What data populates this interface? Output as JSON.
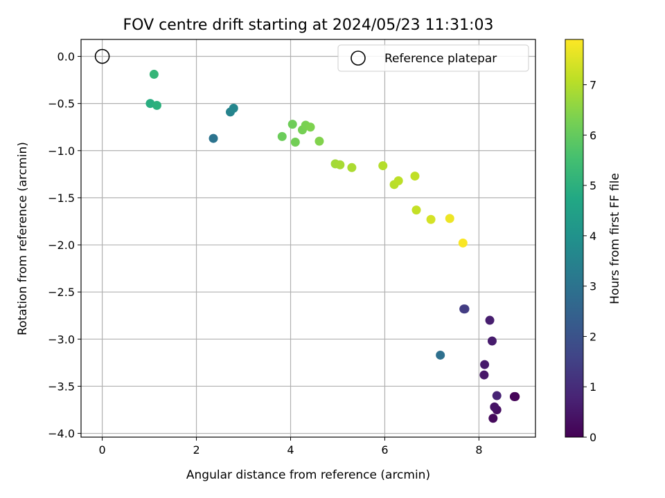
{
  "chart_data": {
    "type": "scatter",
    "title": "FOV centre drift starting at 2024/05/23 11:31:03",
    "xlabel": "Angular distance from reference (arcmin)",
    "ylabel": "Rotation from reference (arcmin)",
    "xlim": [
      -0.45,
      9.2
    ],
    "ylim": [
      -4.04,
      0.18
    ],
    "xticks": [
      "0",
      "2",
      "4",
      "6",
      "8"
    ],
    "xtick_values": [
      0,
      2,
      4,
      6,
      8
    ],
    "yticks": [
      "0.0",
      "−0.5",
      "−1.0",
      "−1.5",
      "−2.0",
      "−2.5",
      "−3.0",
      "−3.5",
      "−4.0"
    ],
    "ytick_values": [
      0,
      -0.5,
      -1,
      -1.5,
      -2,
      -2.5,
      -3,
      -3.5,
      -4
    ],
    "grid": true,
    "legend": {
      "label": "Reference platepar",
      "position": "top-right"
    },
    "reference": {
      "x": 0,
      "y": 0
    },
    "colorbar": {
      "label": "Hours from first FF file",
      "min": 0,
      "max": 7.9,
      "ticks": [
        "0",
        "1",
        "2",
        "3",
        "4",
        "5",
        "6",
        "7"
      ],
      "tick_values": [
        0,
        1,
        2,
        3,
        4,
        5,
        6,
        7
      ],
      "colormap": "viridis"
    },
    "points": [
      {
        "x": 8.77,
        "y": -3.61,
        "h": 0.0
      },
      {
        "x": 8.75,
        "y": -3.61,
        "h": 0.1
      },
      {
        "x": 8.3,
        "y": -3.84,
        "h": 0.2
      },
      {
        "x": 8.38,
        "y": -3.75,
        "h": 0.3
      },
      {
        "x": 8.33,
        "y": -3.72,
        "h": 0.4
      },
      {
        "x": 8.11,
        "y": -3.38,
        "h": 0.5
      },
      {
        "x": 8.12,
        "y": -3.27,
        "h": 0.55
      },
      {
        "x": 8.28,
        "y": -3.02,
        "h": 0.6
      },
      {
        "x": 8.23,
        "y": -2.8,
        "h": 0.65
      },
      {
        "x": 8.38,
        "y": -3.6,
        "h": 0.8
      },
      {
        "x": 7.68,
        "y": -2.68,
        "h": 1.35
      },
      {
        "x": 7.7,
        "y": -2.68,
        "h": 1.4
      },
      {
        "x": 7.18,
        "y": -3.17,
        "h": 2.9
      },
      {
        "x": 2.36,
        "y": -0.87,
        "h": 3.0
      },
      {
        "x": 2.72,
        "y": -0.59,
        "h": 3.5
      },
      {
        "x": 2.79,
        "y": -0.55,
        "h": 3.6
      },
      {
        "x": 1.02,
        "y": -0.5,
        "h": 4.9
      },
      {
        "x": 1.16,
        "y": -0.52,
        "h": 5.0
      },
      {
        "x": 1.1,
        "y": -0.19,
        "h": 5.2
      },
      {
        "x": 3.82,
        "y": -0.85,
        "h": 6.1
      },
      {
        "x": 4.04,
        "y": -0.72,
        "h": 6.15
      },
      {
        "x": 4.1,
        "y": -0.91,
        "h": 6.2
      },
      {
        "x": 4.25,
        "y": -0.78,
        "h": 6.25
      },
      {
        "x": 4.32,
        "y": -0.73,
        "h": 6.3
      },
      {
        "x": 4.42,
        "y": -0.75,
        "h": 6.35
      },
      {
        "x": 4.61,
        "y": -0.9,
        "h": 6.4
      },
      {
        "x": 4.95,
        "y": -1.14,
        "h": 6.8
      },
      {
        "x": 5.05,
        "y": -1.15,
        "h": 6.85
      },
      {
        "x": 5.3,
        "y": -1.18,
        "h": 6.9
      },
      {
        "x": 5.96,
        "y": -1.16,
        "h": 7.0
      },
      {
        "x": 6.2,
        "y": -1.36,
        "h": 7.05
      },
      {
        "x": 6.29,
        "y": -1.32,
        "h": 7.1
      },
      {
        "x": 6.64,
        "y": -1.27,
        "h": 7.15
      },
      {
        "x": 6.67,
        "y": -1.63,
        "h": 7.2
      },
      {
        "x": 6.98,
        "y": -1.73,
        "h": 7.4
      },
      {
        "x": 7.38,
        "y": -1.72,
        "h": 7.7
      },
      {
        "x": 7.66,
        "y": -1.98,
        "h": 7.85
      }
    ]
  }
}
